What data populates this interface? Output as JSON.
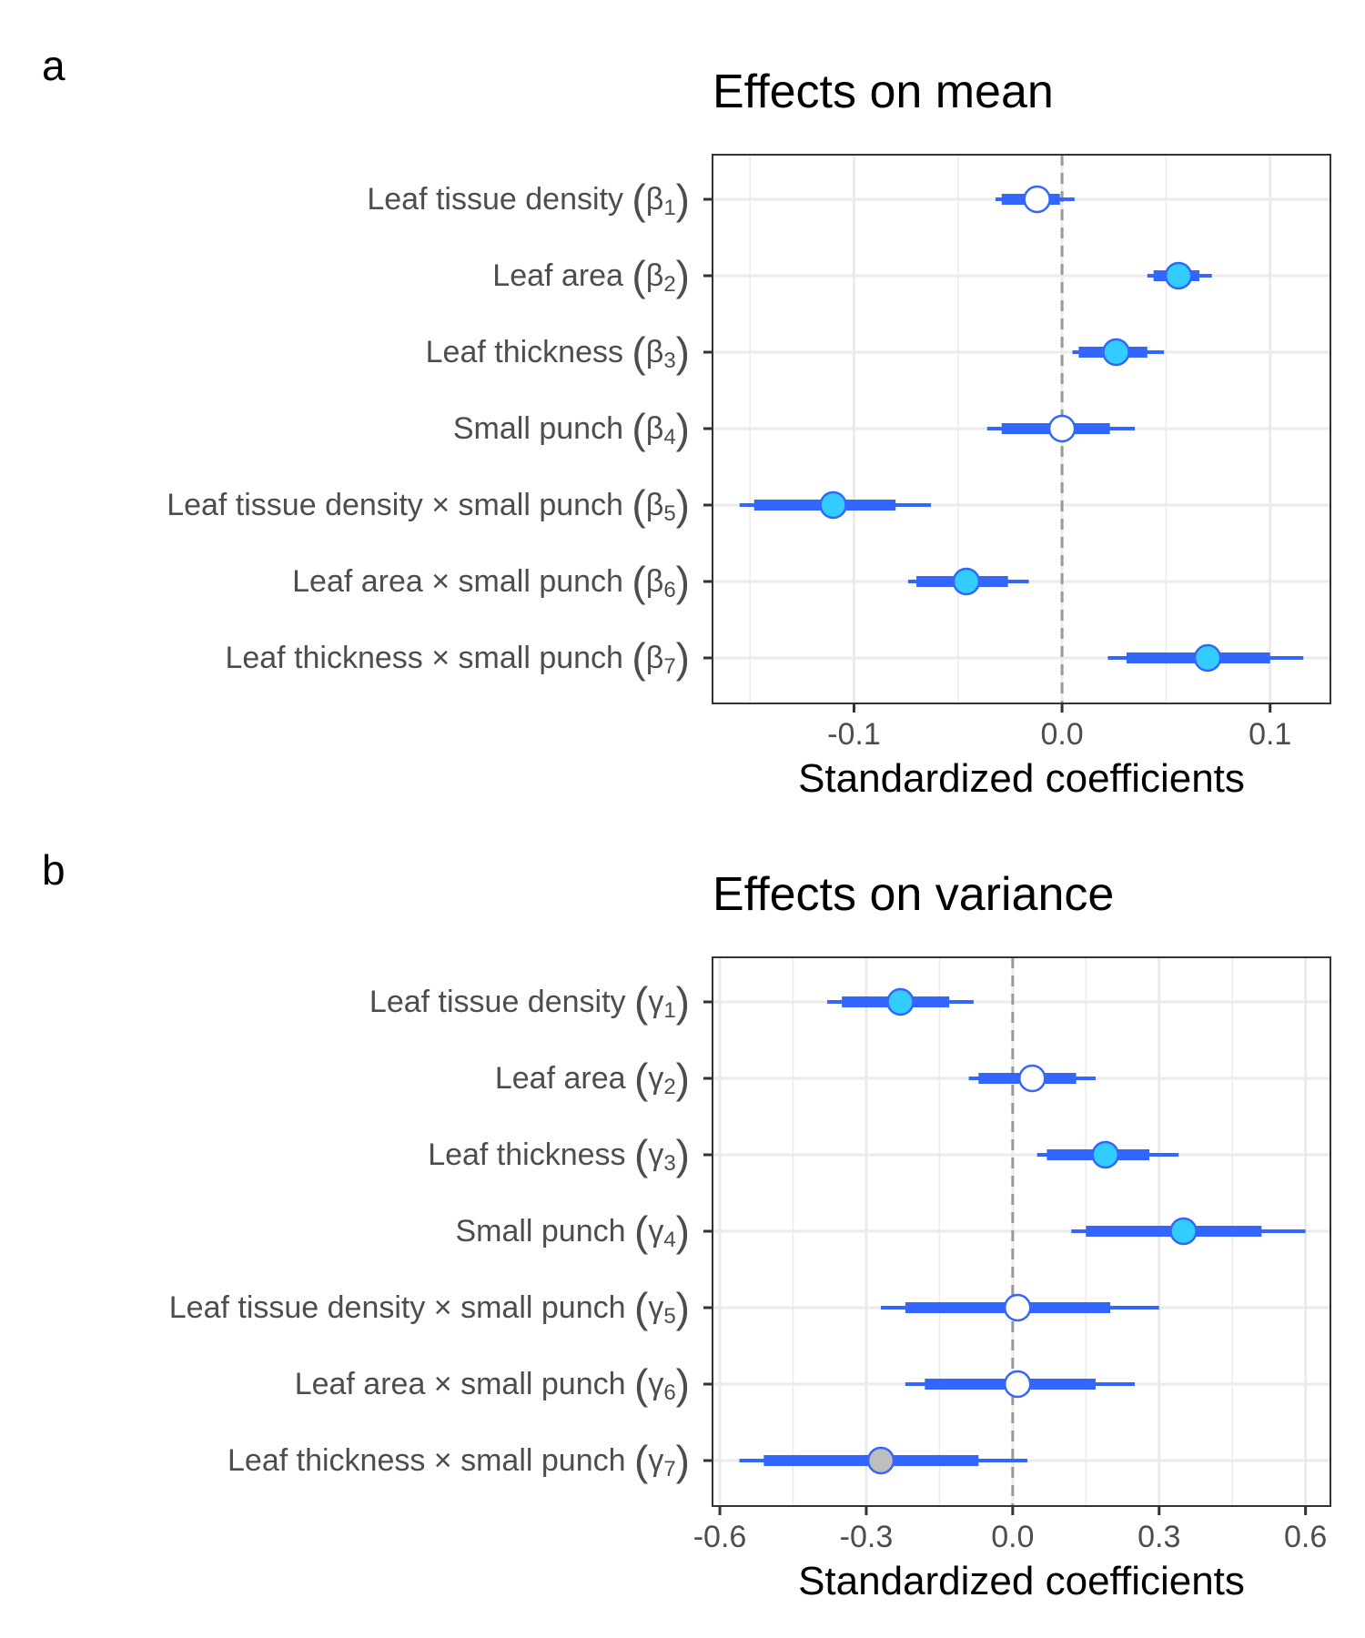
{
  "panel_labels": [
    "a",
    "b"
  ],
  "colors": {
    "interval": "#3366ff",
    "point_significant": "#33ccff",
    "point_nonsignificant": "#ffffff",
    "point_gray": "#bebebe",
    "grid": "#ebebeb",
    "zero_line": "#999999"
  },
  "chart_data": [
    {
      "type": "forest",
      "title": "Effects on mean",
      "xlabel": "Standardized coefficients",
      "xlim": [
        -0.168,
        0.129
      ],
      "xticks": [
        "-0.1",
        "0.0",
        "0.1"
      ],
      "xtick_values": [
        -0.1,
        0.0,
        0.1
      ],
      "grid": true,
      "reference_line": 0,
      "rows": [
        {
          "label": "Leaf tissue density",
          "coef": "β",
          "sub": "1",
          "estimate": -0.012,
          "inner": [
            -0.029,
            -0.001
          ],
          "outer": [
            -0.032,
            0.006
          ],
          "fill": "open"
        },
        {
          "label": "Leaf area",
          "coef": "β",
          "sub": "2",
          "estimate": 0.056,
          "inner": [
            0.044,
            0.066
          ],
          "outer": [
            0.041,
            0.072
          ],
          "fill": "filled"
        },
        {
          "label": "Leaf thickness",
          "coef": "β",
          "sub": "3",
          "estimate": 0.026,
          "inner": [
            0.008,
            0.041
          ],
          "outer": [
            0.005,
            0.049
          ],
          "fill": "filled"
        },
        {
          "label": "Small punch",
          "coef": "β",
          "sub": "4",
          "estimate": 0.0,
          "inner": [
            -0.029,
            0.023
          ],
          "outer": [
            -0.036,
            0.035
          ],
          "fill": "open"
        },
        {
          "label": "Leaf tissue density × small punch",
          "coef": "β",
          "sub": "5",
          "estimate": -0.11,
          "inner": [
            -0.148,
            -0.08
          ],
          "outer": [
            -0.155,
            -0.063
          ],
          "fill": "filled"
        },
        {
          "label": "Leaf area × small punch",
          "coef": "β",
          "sub": "6",
          "estimate": -0.046,
          "inner": [
            -0.07,
            -0.026
          ],
          "outer": [
            -0.074,
            -0.016
          ],
          "fill": "filled"
        },
        {
          "label": "Leaf thickness × small punch",
          "coef": "β",
          "sub": "7",
          "estimate": 0.07,
          "inner": [
            0.031,
            0.1
          ],
          "outer": [
            0.022,
            0.116
          ],
          "fill": "filled"
        }
      ]
    },
    {
      "type": "forest",
      "title": "Effects on variance",
      "xlabel": "Standardized coefficients",
      "xlim": [
        -0.615,
        0.651
      ],
      "xticks": [
        "-0.6",
        "-0.3",
        "0.0",
        "0.3",
        "0.6"
      ],
      "xtick_values": [
        -0.6,
        -0.3,
        0.0,
        0.3,
        0.6
      ],
      "grid": true,
      "reference_line": 0,
      "rows": [
        {
          "label": "Leaf tissue density",
          "coef": "γ",
          "sub": "1",
          "estimate": -0.23,
          "inner": [
            -0.35,
            -0.13
          ],
          "outer": [
            -0.38,
            -0.08
          ],
          "fill": "filled"
        },
        {
          "label": "Leaf area",
          "coef": "γ",
          "sub": "2",
          "estimate": 0.04,
          "inner": [
            -0.07,
            0.13
          ],
          "outer": [
            -0.09,
            0.17
          ],
          "fill": "open"
        },
        {
          "label": "Leaf thickness",
          "coef": "γ",
          "sub": "3",
          "estimate": 0.19,
          "inner": [
            0.07,
            0.28
          ],
          "outer": [
            0.05,
            0.34
          ],
          "fill": "filled"
        },
        {
          "label": "Small punch",
          "coef": "γ",
          "sub": "4",
          "estimate": 0.35,
          "inner": [
            0.15,
            0.51
          ],
          "outer": [
            0.12,
            0.6
          ],
          "fill": "filled"
        },
        {
          "label": "Leaf tissue density × small punch",
          "coef": "γ",
          "sub": "5",
          "estimate": 0.01,
          "inner": [
            -0.22,
            0.2
          ],
          "outer": [
            -0.27,
            0.3
          ],
          "fill": "open"
        },
        {
          "label": "Leaf area × small punch",
          "coef": "γ",
          "sub": "6",
          "estimate": 0.01,
          "inner": [
            -0.18,
            0.17
          ],
          "outer": [
            -0.22,
            0.25
          ],
          "fill": "open"
        },
        {
          "label": "Leaf thickness × small punch",
          "coef": "γ",
          "sub": "7",
          "estimate": -0.27,
          "inner": [
            -0.51,
            -0.07
          ],
          "outer": [
            -0.56,
            0.03
          ],
          "fill": "gray"
        }
      ]
    }
  ]
}
